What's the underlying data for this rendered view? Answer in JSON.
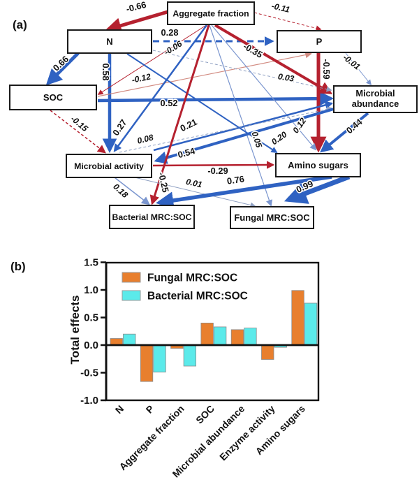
{
  "figure": {
    "panel_a_label": "(a)",
    "panel_b_label": "(b)"
  },
  "diagram": {
    "palette": {
      "red": "#b5212f",
      "lightred": "#d28c82",
      "blue": "#2f62c2",
      "lightblue": "#7b96cf",
      "gray": "#8fa0c2",
      "box_border": "#1a1a1a",
      "box_fill": "#ffffff",
      "label_color": "#111111"
    },
    "nodes": [
      {
        "id": "af",
        "label": "Aggregate fraction"
      },
      {
        "id": "n",
        "label": "N"
      },
      {
        "id": "p",
        "label": "P"
      },
      {
        "id": "soc",
        "label": "SOC"
      },
      {
        "id": "mab",
        "label": "Microbial abundance",
        "lines": [
          "Microbial",
          "abundance"
        ]
      },
      {
        "id": "mact",
        "label": "Microbial activity"
      },
      {
        "id": "amino",
        "label": "Amino sugars"
      },
      {
        "id": "bact",
        "label": "Bacterial MRC:SOC"
      },
      {
        "id": "fung",
        "label": "Fungal MRC:SOC"
      }
    ],
    "edges": [
      {
        "from": "Aggregate fraction",
        "to": "N",
        "label": "-0.66",
        "color": "red",
        "weight": 5,
        "dash": false,
        "italic": false
      },
      {
        "from": "Aggregate fraction",
        "to": "P",
        "label": "-0.11",
        "color": "red",
        "weight": 1,
        "dash": true,
        "italic": true
      },
      {
        "from": "N",
        "to": "P",
        "label": "0.28",
        "color": "blue",
        "weight": 3,
        "dash": true,
        "italic": false
      },
      {
        "from": "N",
        "to": "SOC",
        "label": "0.66",
        "color": "blue",
        "weight": 5,
        "dash": false,
        "italic": false
      },
      {
        "from": "N",
        "to": "Microbial activity",
        "label": "0.58",
        "color": "blue",
        "weight": 4.5,
        "dash": false,
        "italic": false
      },
      {
        "from": "Aggregate fraction",
        "to": "SOC",
        "label": "-0.06",
        "color": "red",
        "weight": 1,
        "dash": false,
        "italic": true
      },
      {
        "from": "SOC",
        "to": "P",
        "label": "-0.12",
        "color": "lightred",
        "weight": 1.2,
        "dash": false,
        "italic": true
      },
      {
        "from": "SOC",
        "to": "Microbial abundance",
        "label": "0.52",
        "color": "blue",
        "weight": 4.5,
        "dash": false,
        "italic": false
      },
      {
        "from": "Aggregate fraction",
        "to": "Microbial abundance",
        "label": "-0.35",
        "color": "red",
        "weight": 4,
        "dash": false,
        "italic": false
      },
      {
        "from": "P",
        "to": "Microbial abundance",
        "label": "-0.01",
        "color": "lightblue",
        "weight": 1,
        "dash": false,
        "italic": true
      },
      {
        "from": "N",
        "to": "Microbial abundance",
        "label": "0.03",
        "color": "gray",
        "weight": 1,
        "dash": true,
        "italic": true
      },
      {
        "from": "P",
        "to": "Amino sugars",
        "label": "-0.59",
        "color": "red",
        "weight": 5,
        "dash": false,
        "italic": false
      },
      {
        "from": "Microbial abundance",
        "to": "Amino sugars",
        "label": "0.44",
        "color": "blue",
        "weight": 4,
        "dash": false,
        "italic": false
      },
      {
        "from": "Aggregate fraction",
        "to": "Amino sugars",
        "label": "0.12",
        "color": "lightblue",
        "weight": 1.2,
        "dash": false,
        "italic": true
      },
      {
        "from": "Aggregate fraction",
        "to": "Fungal MRC:SOC",
        "label": "0.05",
        "color": "lightblue",
        "weight": 1.2,
        "dash": false,
        "italic": true
      },
      {
        "from": "SOC",
        "to": "Microbial activity",
        "label": "-0.15",
        "color": "red",
        "weight": 1.5,
        "dash": true,
        "italic": true
      },
      {
        "from": "Aggregate fraction",
        "to": "Microbial activity",
        "label": "0.27",
        "color": "blue",
        "weight": 2.5,
        "dash": false,
        "italic": false
      },
      {
        "from": "Microbial activity",
        "to": "Microbial abundance",
        "label": "0.21",
        "color": "blue",
        "weight": 2.5,
        "dash": false,
        "italic": false
      },
      {
        "from": "Microbial activity",
        "to": "Microbial abundance",
        "label": "0.08",
        "color": "gray",
        "weight": 1,
        "dash": true,
        "italic": true
      },
      {
        "from": "N",
        "to": "Amino sugars",
        "label": "0.20",
        "color": "blue",
        "weight": 2,
        "dash": false,
        "italic": true
      },
      {
        "from": "Microbial abundance",
        "to": "Microbial activity",
        "label": "0.54",
        "color": "blue",
        "weight": 4,
        "dash": false,
        "italic": false
      },
      {
        "from": "Microbial activity",
        "to": "Amino sugars",
        "label": "-0.29",
        "color": "red",
        "weight": 2.5,
        "dash": false,
        "italic": false
      },
      {
        "from": "Microbial activity",
        "to": "Bacterial MRC:SOC",
        "label": "0.18",
        "color": "lightblue",
        "weight": 1.5,
        "dash": false,
        "italic": true
      },
      {
        "from": "Aggregate fraction",
        "to": "Bacterial MRC:SOC",
        "label": "-0.25",
        "color": "red",
        "weight": 3,
        "dash": false,
        "italic": false
      },
      {
        "from": "Microbial activity",
        "to": "Fungal MRC:SOC",
        "label": "0.01",
        "color": "gray",
        "weight": 1,
        "dash": false,
        "italic": true
      },
      {
        "from": "Amino sugars",
        "to": "Bacterial MRC:SOC",
        "label": "0.76",
        "color": "blue",
        "weight": 5.5,
        "dash": false,
        "italic": false
      },
      {
        "from": "Amino sugars",
        "to": "Fungal MRC:SOC",
        "label": "0.99",
        "color": "blue",
        "weight": 7,
        "dash": false,
        "italic": false
      }
    ]
  },
  "chart_data": {
    "type": "bar",
    "title": "",
    "xlabel": "",
    "ylabel": "Total effects",
    "ylim": [
      -1.0,
      1.5
    ],
    "yticks": [
      1.5,
      1.0,
      0.5,
      0.0,
      -0.5,
      -1.0
    ],
    "grid": false,
    "legend_position": "top-left-inside",
    "categories": [
      "N",
      "P",
      "Aggregate fraction",
      "SOC",
      "Microbial abundance",
      "Enzyme activity",
      "Amino sugars"
    ],
    "series": [
      {
        "name": "Fungal MRC:SOC",
        "color": "#E87F2E",
        "values": [
          0.12,
          -0.66,
          -0.06,
          0.4,
          0.28,
          -0.26,
          0.99
        ]
      },
      {
        "name": "Bacterial MRC:SOC",
        "color": "#5BEAEA",
        "values": [
          0.2,
          -0.49,
          -0.38,
          0.33,
          0.31,
          -0.04,
          0.76
        ]
      }
    ],
    "axis_color": "#111111"
  }
}
